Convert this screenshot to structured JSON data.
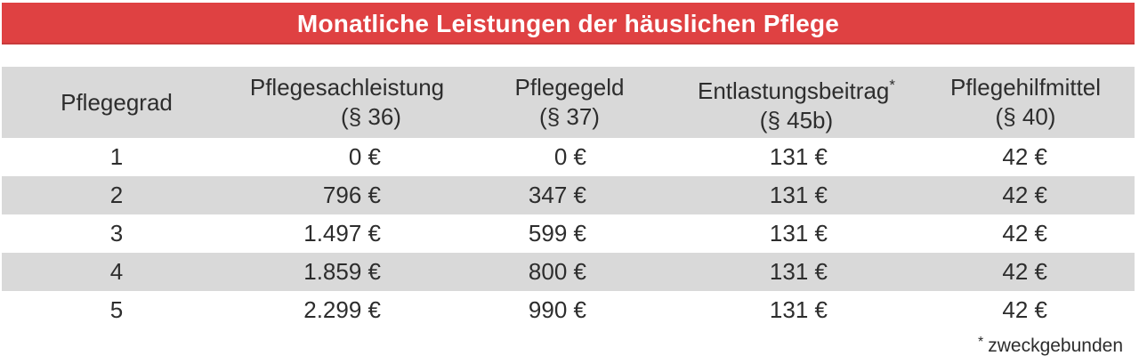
{
  "header": {
    "title": "Monatliche Leistungen der häuslichen Pflege"
  },
  "chart_data": {
    "type": "table",
    "title": "Monatliche Leistungen der häuslichen Pflege",
    "columns": [
      {
        "label": "Pflegegrad",
        "sub": ""
      },
      {
        "label": "Pflegesachleistung",
        "sub": "(§ 36)"
      },
      {
        "label": "Pflegegeld",
        "sub": "(§ 37)"
      },
      {
        "label": "Entlastungsbeitrag",
        "marker": "*",
        "sub": "(§ 45b)"
      },
      {
        "label": "Pflegehilfmittel",
        "sub": "(§ 40)"
      }
    ],
    "rows": [
      [
        "1",
        "0 €",
        "0 €",
        "131 €",
        "42 €"
      ],
      [
        "2",
        "796 €",
        "347 €",
        "131 €",
        "42 €"
      ],
      [
        "3",
        "1.497 €",
        "599 €",
        "131 €",
        "42 €"
      ],
      [
        "4",
        "1.859 €",
        "800 €",
        "131 €",
        "42 €"
      ],
      [
        "5",
        "2.299 €",
        "990 €",
        "131 €",
        "42 €"
      ]
    ]
  },
  "footnote": {
    "marker": "*",
    "text": "zweckgebunden"
  },
  "colors": {
    "accent_red": "#df4142",
    "row_gray": "#d9d9d9",
    "text_dark": "#2d2d2d",
    "title_text": "#ffffff"
  }
}
